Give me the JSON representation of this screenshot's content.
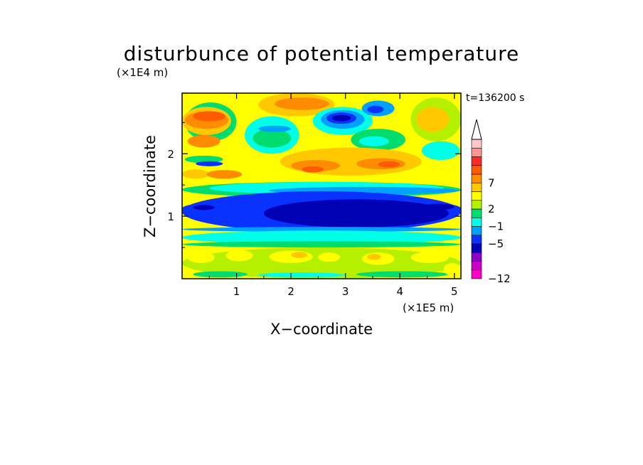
{
  "chart_data": {
    "type": "heatmap",
    "title": "disturbunce of potential temperature",
    "time_label": "t=136200 s",
    "xlabel": "X−coordinate",
    "ylabel": "Z−coordinate",
    "x_scale_label": "(×1E5 m)",
    "y_scale_label": "(×1E4 m)",
    "xlim": [
      0,
      5.12
    ],
    "ylim": [
      0,
      2.97
    ],
    "x_ticks": [
      "1",
      "2",
      "3",
      "4",
      "5"
    ],
    "y_ticks": [
      "1",
      "2"
    ],
    "colorbar": {
      "levels": [
        "−12",
        "−5",
        "−1",
        "2",
        "7"
      ],
      "level_values": [
        -12,
        -5,
        -1,
        2,
        7
      ],
      "colors": [
        "#ff00c8",
        "#c800c8",
        "#8c00c8",
        "#0000b4",
        "#0a32ff",
        "#00a0ff",
        "#00ffe6",
        "#00dc6e",
        "#b4f000",
        "#ffff00",
        "#ffc800",
        "#ff8c00",
        "#ff5a00",
        "#ff2828",
        "#ff9696",
        "#ffc8c8"
      ],
      "extend": "max"
    },
    "grid": false
  }
}
